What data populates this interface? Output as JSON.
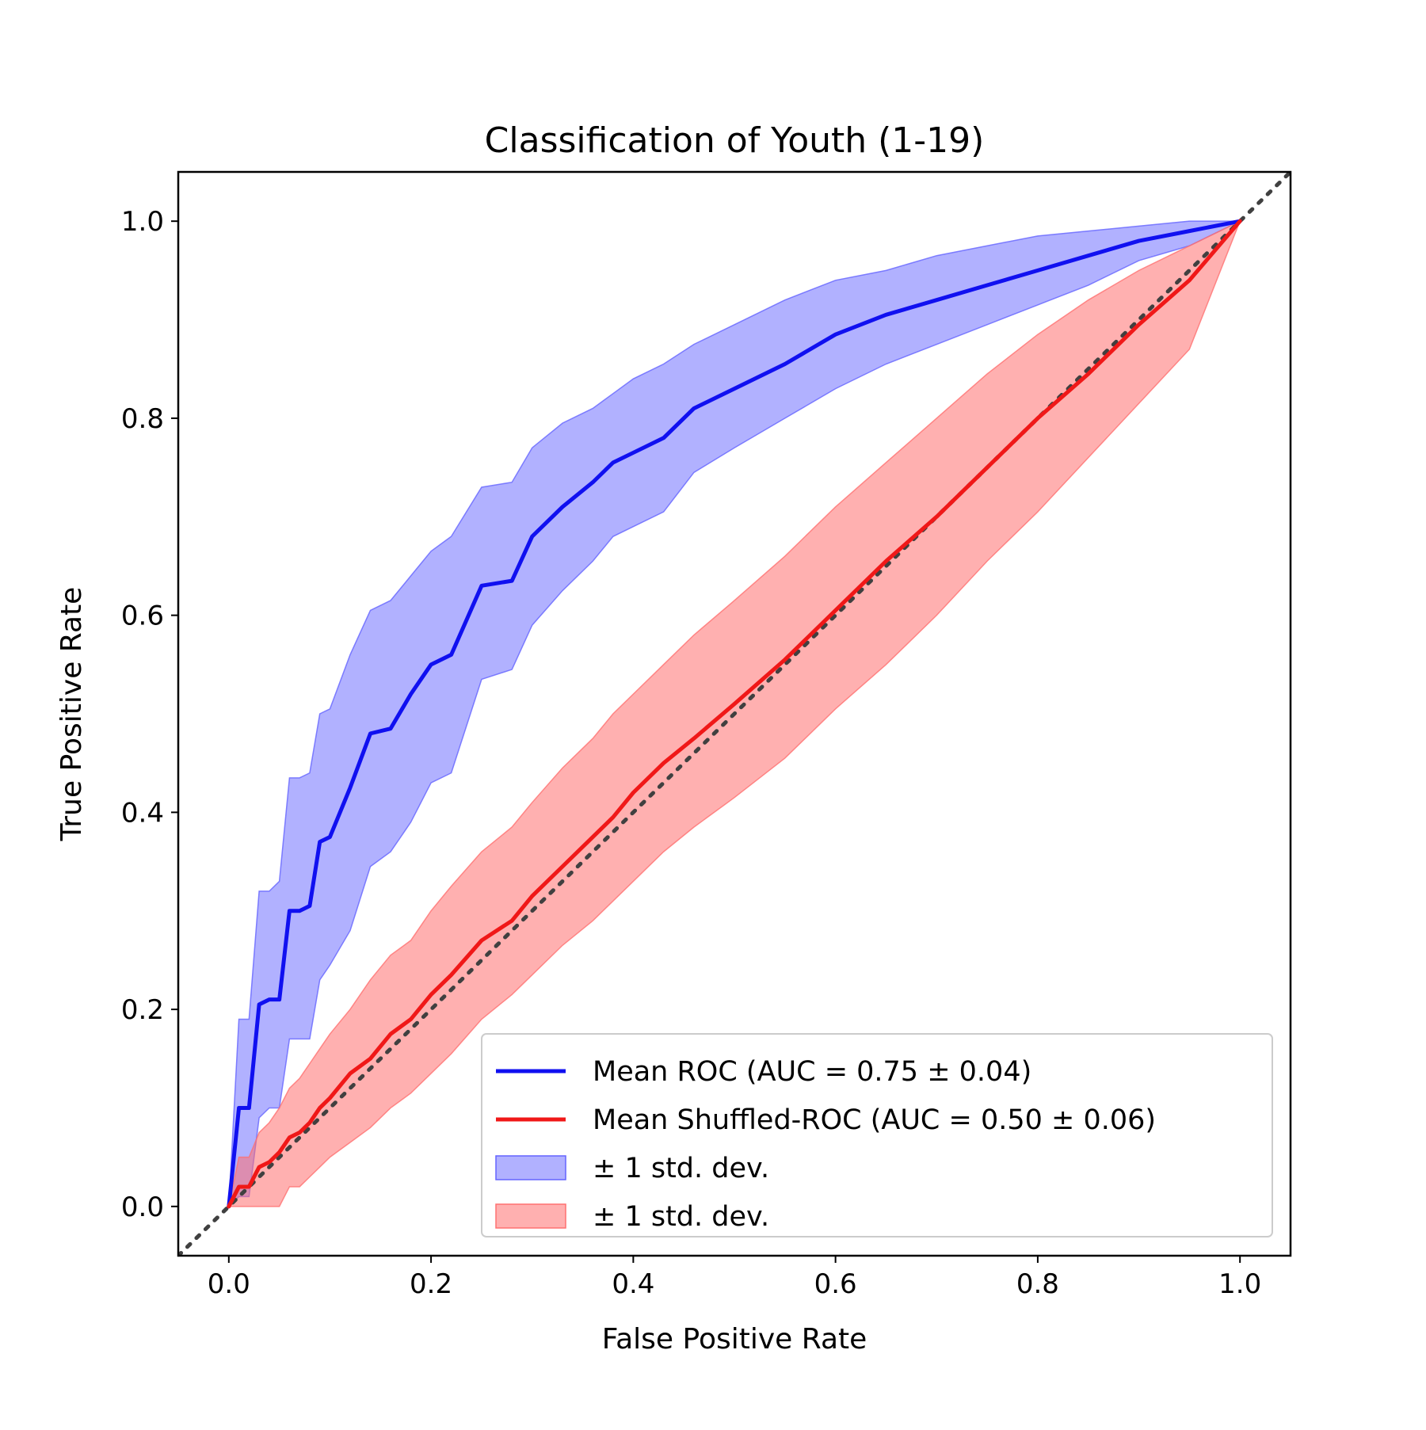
{
  "chart_data": {
    "type": "line",
    "title": "Classification of Youth (1-19)",
    "xlabel": "False Positive Rate",
    "ylabel": "True Positive Rate",
    "xlim": [
      -0.05,
      1.05
    ],
    "ylim": [
      -0.05,
      1.05
    ],
    "xticks": [
      0.0,
      0.2,
      0.4,
      0.6,
      0.8,
      1.0
    ],
    "yticks": [
      0.0,
      0.2,
      0.4,
      0.6,
      0.8,
      1.0
    ],
    "tick_labels": [
      "0.0",
      "0.2",
      "0.4",
      "0.6",
      "0.8",
      "1.0"
    ],
    "grid": false,
    "legend_position": "bottom-right",
    "legend": [
      {
        "label": "Mean ROC (AUC = 0.75 ± 0.04)",
        "kind": "line",
        "color": "#1010f0"
      },
      {
        "label": "Mean Shuffled-ROC (AUC = 0.50 ± 0.06)",
        "kind": "line",
        "color": "#f01818"
      },
      {
        "label": "± 1 std. dev.",
        "kind": "band",
        "color": "#6464ff"
      },
      {
        "label": "± 1 std. dev.",
        "kind": "band",
        "color": "#ff7070"
      }
    ],
    "chance_line": {
      "x": [
        -0.05,
        1.05
      ],
      "y": [
        -0.05,
        1.05
      ],
      "style": "dotted",
      "color": "#404040"
    },
    "x": [
      0.0,
      0.01,
      0.02,
      0.03,
      0.04,
      0.05,
      0.06,
      0.07,
      0.08,
      0.09,
      0.1,
      0.12,
      0.14,
      0.16,
      0.18,
      0.2,
      0.22,
      0.25,
      0.28,
      0.3,
      0.33,
      0.36,
      0.38,
      0.4,
      0.43,
      0.46,
      0.5,
      0.55,
      0.6,
      0.65,
      0.7,
      0.75,
      0.8,
      0.85,
      0.9,
      0.95,
      1.0
    ],
    "series": [
      {
        "name": "Mean ROC (AUC = 0.75 ± 0.04)",
        "color": "#1010f0",
        "values": [
          0.0,
          0.1,
          0.1,
          0.205,
          0.21,
          0.21,
          0.3,
          0.3,
          0.305,
          0.37,
          0.375,
          0.425,
          0.48,
          0.485,
          0.52,
          0.55,
          0.56,
          0.63,
          0.635,
          0.68,
          0.71,
          0.735,
          0.755,
          0.765,
          0.78,
          0.81,
          0.83,
          0.855,
          0.885,
          0.905,
          0.92,
          0.935,
          0.95,
          0.965,
          0.98,
          0.99,
          1.0
        ],
        "upper": [
          0.0,
          0.19,
          0.19,
          0.32,
          0.32,
          0.33,
          0.435,
          0.435,
          0.44,
          0.5,
          0.505,
          0.56,
          0.605,
          0.615,
          0.64,
          0.665,
          0.68,
          0.73,
          0.735,
          0.77,
          0.795,
          0.81,
          0.825,
          0.84,
          0.855,
          0.875,
          0.895,
          0.92,
          0.94,
          0.95,
          0.965,
          0.975,
          0.985,
          0.99,
          0.995,
          1.0,
          1.0
        ],
        "lower": [
          0.0,
          0.01,
          0.01,
          0.09,
          0.1,
          0.1,
          0.17,
          0.17,
          0.17,
          0.23,
          0.245,
          0.28,
          0.345,
          0.36,
          0.39,
          0.43,
          0.44,
          0.535,
          0.545,
          0.59,
          0.625,
          0.655,
          0.68,
          0.69,
          0.705,
          0.745,
          0.77,
          0.8,
          0.83,
          0.855,
          0.875,
          0.895,
          0.915,
          0.935,
          0.96,
          0.975,
          1.0
        ]
      },
      {
        "name": "Mean Shuffled-ROC (AUC = 0.50 ± 0.06)",
        "color": "#f01818",
        "values": [
          0.0,
          0.02,
          0.02,
          0.04,
          0.045,
          0.055,
          0.07,
          0.075,
          0.085,
          0.1,
          0.11,
          0.135,
          0.15,
          0.175,
          0.19,
          0.215,
          0.235,
          0.27,
          0.29,
          0.315,
          0.345,
          0.375,
          0.395,
          0.42,
          0.45,
          0.475,
          0.51,
          0.555,
          0.605,
          0.655,
          0.7,
          0.75,
          0.8,
          0.845,
          0.895,
          0.94,
          1.0
        ],
        "upper": [
          0.0,
          0.05,
          0.05,
          0.075,
          0.085,
          0.1,
          0.12,
          0.13,
          0.145,
          0.16,
          0.175,
          0.2,
          0.23,
          0.255,
          0.27,
          0.3,
          0.325,
          0.36,
          0.385,
          0.41,
          0.445,
          0.475,
          0.5,
          0.52,
          0.55,
          0.58,
          0.615,
          0.66,
          0.71,
          0.755,
          0.8,
          0.845,
          0.885,
          0.92,
          0.95,
          0.975,
          1.0
        ],
        "lower": [
          0.0,
          0.0,
          0.0,
          0.0,
          0.0,
          0.0,
          0.02,
          0.02,
          0.03,
          0.04,
          0.05,
          0.065,
          0.08,
          0.1,
          0.115,
          0.135,
          0.155,
          0.19,
          0.215,
          0.235,
          0.265,
          0.29,
          0.31,
          0.33,
          0.36,
          0.385,
          0.415,
          0.455,
          0.505,
          0.55,
          0.6,
          0.655,
          0.705,
          0.76,
          0.815,
          0.87,
          1.0
        ]
      }
    ]
  }
}
